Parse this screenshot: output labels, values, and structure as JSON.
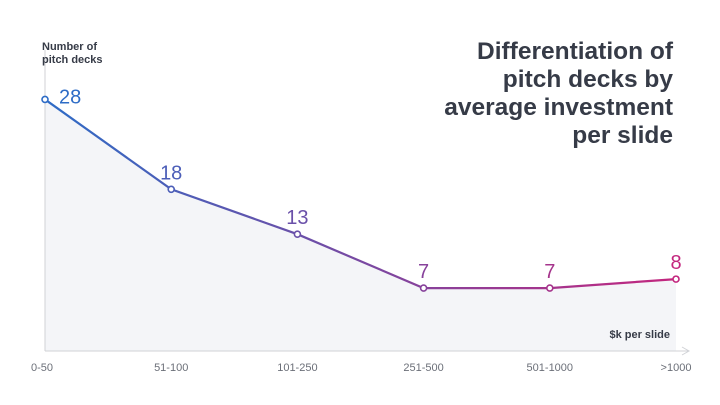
{
  "chart_data": {
    "type": "line",
    "title": "Differentiation of pitch decks by average investment per slide",
    "y_label": "Number of pitch decks",
    "x_label": "$k per slide",
    "categories": [
      "0-50",
      "51-100",
      "101-250",
      "251-500",
      "501-1000",
      ">1000"
    ],
    "values": [
      28,
      18,
      13,
      7,
      7,
      8
    ],
    "colors": [
      "#2e6cc6",
      "#c3267e"
    ],
    "area_color": "#f4f5f8",
    "ylim": [
      0,
      33.5
    ]
  }
}
